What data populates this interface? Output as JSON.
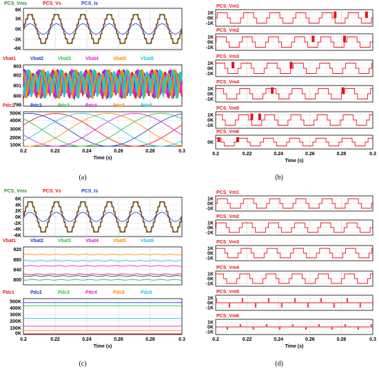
{
  "figure": {
    "captions": [
      "(a)",
      "(b)",
      "(c)",
      "(d)"
    ]
  },
  "chart_data": [
    {
      "id": "a1",
      "type": "line",
      "legend": [
        {
          "name": "PCS_Vms",
          "color": "#2e8b2e"
        },
        {
          "name": "PCS_Vs",
          "color": "#e8141c"
        },
        {
          "name": "PCS_Is",
          "color": "#1e3cd2"
        }
      ],
      "yticks": [
        "6K",
        "3K",
        "0K",
        "-3K",
        "-6K"
      ],
      "ylim": [
        -6000,
        6000
      ],
      "xlim": [
        0.2,
        0.3
      ],
      "series": [
        {
          "name": "PCS_Vms",
          "kind": "sine",
          "amp": 4200,
          "freq": 60,
          "phase": 0,
          "steps": true,
          "color": "#2e8b2e"
        },
        {
          "name": "PCS_Vs",
          "kind": "sine",
          "amp": 4200,
          "freq": 60,
          "phase": 0,
          "steps": false,
          "color": "#e8141c"
        },
        {
          "name": "PCS_Is",
          "kind": "sine",
          "amp": 1500,
          "freq": 60,
          "phase": 0,
          "steps": false,
          "color": "#1e3cd2"
        }
      ]
    },
    {
      "id": "a2",
      "type": "line",
      "legend": [
        {
          "name": "Vbat1",
          "color": "#e8141c"
        },
        {
          "name": "Vbat2",
          "color": "#1e3cd2"
        },
        {
          "name": "Vbat3",
          "color": "#22c83c"
        },
        {
          "name": "Vbat4",
          "color": "#e61ed7"
        },
        {
          "name": "Vbat5",
          "color": "#ff8c00"
        },
        {
          "name": "Vbat6",
          "color": "#1ec8dc"
        }
      ],
      "yticks": [
        "803",
        "802",
        "801",
        "800",
        "799"
      ],
      "ylim": [
        799,
        803
      ],
      "xlim": [
        0.2,
        0.3
      ],
      "series": [
        {
          "name": "Vbat1",
          "kind": "ripple",
          "base": 800,
          "amp": 2.2,
          "freq": 120,
          "phase": 0,
          "color": "#e8141c"
        },
        {
          "name": "Vbat2",
          "kind": "ripple",
          "base": 800,
          "amp": 2.2,
          "freq": 120,
          "phase": 1.05,
          "color": "#1e3cd2"
        },
        {
          "name": "Vbat3",
          "kind": "ripple",
          "base": 800,
          "amp": 2.2,
          "freq": 120,
          "phase": 2.1,
          "color": "#22c83c"
        },
        {
          "name": "Vbat4",
          "kind": "ripple",
          "base": 800,
          "amp": 2.2,
          "freq": 120,
          "phase": 0.5,
          "color": "#e61ed7"
        },
        {
          "name": "Vbat5",
          "kind": "ripple",
          "base": 800,
          "amp": 2.2,
          "freq": 120,
          "phase": 1.6,
          "color": "#ff8c00"
        },
        {
          "name": "Vbat6",
          "kind": "ripple",
          "base": 800,
          "amp": 2.2,
          "freq": 120,
          "phase": 2.6,
          "color": "#1ec8dc"
        }
      ]
    },
    {
      "id": "a3",
      "type": "line",
      "legend": [
        {
          "name": "Pdc1",
          "color": "#e8141c"
        },
        {
          "name": "Pdc2",
          "color": "#1e3cd2"
        },
        {
          "name": "Pdc3",
          "color": "#22c83c"
        },
        {
          "name": "Pdc4",
          "color": "#e61ed7"
        },
        {
          "name": "Pdc5",
          "color": "#ff8c00"
        },
        {
          "name": "Pdc6",
          "color": "#1ec8dc"
        }
      ],
      "yticks": [
        "500K",
        "400K",
        "300K",
        "200K",
        "100K"
      ],
      "ylim": [
        100000,
        500000
      ],
      "xticks": [
        "0.2",
        "0.22",
        "0.24",
        "0.26",
        "0.28",
        "0.3"
      ],
      "xlabel": "Time (s)",
      "xlim": [
        0.2,
        0.3
      ],
      "series": [
        {
          "name": "Pdc1",
          "kind": "sine",
          "offset": 290000,
          "amp": 190000,
          "freq": 10,
          "phase": 0.3,
          "color": "#e8141c"
        },
        {
          "name": "Pdc2",
          "kind": "sine",
          "offset": 290000,
          "amp": 190000,
          "freq": 10,
          "phase": 1.35,
          "color": "#1e3cd2"
        },
        {
          "name": "Pdc3",
          "kind": "sine",
          "offset": 290000,
          "amp": 190000,
          "freq": 10,
          "phase": 2.4,
          "color": "#22c83c"
        },
        {
          "name": "Pdc4",
          "kind": "sine",
          "offset": 290000,
          "amp": 190000,
          "freq": 10,
          "phase": 3.45,
          "color": "#e61ed7"
        },
        {
          "name": "Pdc5",
          "kind": "sine",
          "offset": 290000,
          "amp": 190000,
          "freq": 10,
          "phase": 4.5,
          "color": "#ff8c00"
        },
        {
          "name": "Pdc6",
          "kind": "sine",
          "offset": 290000,
          "amp": 190000,
          "freq": 10,
          "phase": 5.55,
          "color": "#1ec8dc"
        }
      ]
    },
    {
      "id": "b1",
      "type": "line",
      "title": "PCS_Vm1",
      "yticks": [
        "1K",
        "0K",
        "-1K"
      ],
      "ylim": [
        -1600,
        1600
      ],
      "xlim": [
        0.2,
        0.3
      ],
      "series": [
        {
          "name": "PCS_Vm1",
          "kind": "square",
          "amp": 1000,
          "freq": 60,
          "phase": 0.0,
          "spikes": [
            0.276,
            0.296
          ],
          "color": "#e8141c"
        }
      ]
    },
    {
      "id": "b2",
      "type": "line",
      "title": "PCS_Vm2",
      "yticks": [
        "1K",
        "0K",
        "-1K"
      ],
      "ylim": [
        -1600,
        1600
      ],
      "xlim": [
        0.2,
        0.3
      ],
      "series": [
        {
          "name": "PCS_Vm2",
          "kind": "square",
          "amp": 1000,
          "freq": 60,
          "phase": 0.3,
          "spikes": [
            0.262,
            0.282
          ],
          "color": "#e8141c"
        }
      ]
    },
    {
      "id": "b3",
      "type": "line",
      "title": "PCS_Vm3",
      "yticks": [
        "1K",
        "0K",
        "-1K"
      ],
      "ylim": [
        -1600,
        1600
      ],
      "xlim": [
        0.2,
        0.3
      ],
      "series": [
        {
          "name": "PCS_Vm3",
          "kind": "square",
          "amp": 1000,
          "freq": 60,
          "phase": 0.6,
          "spikes": [
            0.211,
            0.248
          ],
          "color": "#e8141c"
        }
      ]
    },
    {
      "id": "b4",
      "type": "line",
      "title": "PCS_Vm4",
      "yticks": [
        "1K",
        "0K",
        "-1K"
      ],
      "ylim": [
        -1600,
        1600
      ],
      "xlim": [
        0.2,
        0.3
      ],
      "series": [
        {
          "name": "PCS_Vm4",
          "kind": "square",
          "amp": 1000,
          "freq": 60,
          "phase": 0.9,
          "spikes": [
            0.236,
            0.281
          ],
          "color": "#e8141c"
        }
      ]
    },
    {
      "id": "b5",
      "type": "line",
      "title": "PCS_Vm5",
      "yticks": [
        "1K",
        "0K",
        "-1K"
      ],
      "ylim": [
        -1600,
        1600
      ],
      "xlim": [
        0.2,
        0.3
      ],
      "series": [
        {
          "name": "PCS_Vm5",
          "kind": "square",
          "amp": 1000,
          "freq": 60,
          "phase": 1.2,
          "spikes": [
            0.223,
            0.228
          ],
          "color": "#e8141c"
        }
      ]
    },
    {
      "id": "b6",
      "type": "line",
      "title": "PCS_Vm6",
      "yticks": [
        "0K"
      ],
      "ylim": [
        -1600,
        1600
      ],
      "xlim": [
        0.2,
        0.3
      ],
      "xticks": [
        "0.2",
        "0.22",
        "0.24",
        "0.26",
        "0.28",
        "0.3"
      ],
      "xlabel": "Time (s)",
      "series": [
        {
          "name": "PCS_Vm6",
          "kind": "square",
          "amp": 900,
          "freq": 60,
          "phase": 1.5,
          "spikes": [
            0.202,
            0.214
          ],
          "color": "#e8141c"
        }
      ]
    },
    {
      "id": "c1",
      "type": "line",
      "legend": [
        {
          "name": "PCS_Vms",
          "color": "#2e8b2e"
        },
        {
          "name": "PCS_Vs",
          "color": "#e8141c"
        },
        {
          "name": "PCS_Is",
          "color": "#1e3cd2"
        }
      ],
      "yticks": [
        "6K",
        "4K",
        "2K",
        "0K",
        "-2K",
        "-4K",
        "-6K"
      ],
      "ylim": [
        -6500,
        6500
      ],
      "xlim": [
        0.2,
        0.3
      ],
      "series": [
        {
          "name": "PCS_Vms",
          "kind": "sine",
          "amp": 5000,
          "freq": 60,
          "phase": 0,
          "steps": true,
          "color": "#2e8b2e"
        },
        {
          "name": "PCS_Vs",
          "kind": "sine",
          "amp": 5000,
          "freq": 60,
          "phase": 0,
          "steps": false,
          "color": "#e8141c"
        },
        {
          "name": "PCS_Is",
          "kind": "sine",
          "amp": 1500,
          "freq": 60,
          "phase": 0,
          "steps": false,
          "color": "#1e3cd2"
        }
      ]
    },
    {
      "id": "c2",
      "type": "line",
      "legend": [
        {
          "name": "Vbat1",
          "color": "#e8141c"
        },
        {
          "name": "Vbat2",
          "color": "#1e3cd2"
        },
        {
          "name": "Vbat3",
          "color": "#22c83c"
        },
        {
          "name": "Vbat4",
          "color": "#e61ed7"
        },
        {
          "name": "Vbat5",
          "color": "#ff8c00"
        },
        {
          "name": "Vbat6",
          "color": "#1ec8dc"
        }
      ],
      "yticks": [
        "920",
        "880",
        "840",
        "800"
      ],
      "ylim": [
        780,
        930
      ],
      "xlim": [
        0.2,
        0.3
      ],
      "series": [
        {
          "name": "Vbat1",
          "kind": "flat",
          "base": 822,
          "ripple": 1.5,
          "color": "#e8141c"
        },
        {
          "name": "Vbat2",
          "kind": "flat",
          "base": 815,
          "ripple": 1.5,
          "color": "#1e3cd2"
        },
        {
          "name": "Vbat3",
          "kind": "flat",
          "base": 800,
          "ripple": 1.5,
          "color": "#22c83c"
        },
        {
          "name": "Vbat4",
          "kind": "flat",
          "base": 855,
          "ripple": 1.5,
          "color": "#e61ed7"
        },
        {
          "name": "Vbat5",
          "kind": "flat",
          "base": 900,
          "ripple": 1.5,
          "color": "#ff8c00"
        },
        {
          "name": "Vbat6",
          "kind": "flat",
          "base": 875,
          "ripple": 1.5,
          "color": "#1ec8dc"
        }
      ]
    },
    {
      "id": "c3",
      "type": "line",
      "legend": [
        {
          "name": "Pdc1",
          "color": "#e8141c"
        },
        {
          "name": "Pdc2",
          "color": "#1e3cd2"
        },
        {
          "name": "Pdc3",
          "color": "#22c83c"
        },
        {
          "name": "Pdc4",
          "color": "#e61ed7"
        },
        {
          "name": "Pdc5",
          "color": "#ff8c00"
        },
        {
          "name": "Pdc6",
          "color": "#1ec8dc"
        }
      ],
      "yticks": [
        "500K",
        "400K",
        "300K",
        "200K",
        "100K",
        "0K"
      ],
      "ylim": [
        0,
        540000
      ],
      "xticks": [
        "0.2",
        "0.22",
        "0.24",
        "0.26",
        "0.28",
        "0.3"
      ],
      "xlabel": "Time (s)",
      "xlim": [
        0.2,
        0.3
      ],
      "series": [
        {
          "name": "Pdc1",
          "kind": "flat",
          "base": 10000,
          "ripple": 0,
          "color": "#e8141c"
        },
        {
          "name": "Pdc2",
          "kind": "flat",
          "base": 480000,
          "ripple": 0,
          "color": "#1e3cd2"
        },
        {
          "name": "Pdc3",
          "kind": "flat",
          "base": 430000,
          "ripple": 0,
          "color": "#22c83c"
        },
        {
          "name": "Pdc4",
          "kind": "flat",
          "base": 125000,
          "ripple": 0,
          "color": "#e61ed7"
        },
        {
          "name": "Pdc5",
          "kind": "flat",
          "base": 60000,
          "ripple": 0,
          "color": "#ff8c00"
        },
        {
          "name": "Pdc6",
          "kind": "flat",
          "base": 245000,
          "ripple": 0,
          "color": "#1ec8dc"
        }
      ]
    },
    {
      "id": "d1",
      "type": "line",
      "title": "PCS_Vm1",
      "yticks": [
        "1K",
        "0K",
        "-1K"
      ],
      "ylim": [
        -1600,
        1600
      ],
      "xlim": [
        0.2,
        0.3
      ],
      "series": [
        {
          "name": "PCS_Vm1",
          "kind": "square",
          "amp": 1000,
          "freq": 60,
          "phase": 0.0,
          "spikes": [],
          "color": "#e8141c"
        }
      ]
    },
    {
      "id": "d2",
      "type": "line",
      "title": "PCS_Vm2",
      "yticks": [
        "1K",
        "0K",
        "-1K"
      ],
      "ylim": [
        -1600,
        1600
      ],
      "xlim": [
        0.2,
        0.3
      ],
      "series": [
        {
          "name": "PCS_Vm2",
          "kind": "square",
          "amp": 1000,
          "freq": 60,
          "phase": 0.3,
          "spikes": [],
          "color": "#e8141c"
        }
      ]
    },
    {
      "id": "d3",
      "type": "line",
      "title": "PCS_Vm3",
      "yticks": [
        "1K",
        "0K",
        "-1K"
      ],
      "ylim": [
        -1600,
        1600
      ],
      "xlim": [
        0.2,
        0.3
      ],
      "series": [
        {
          "name": "PCS_Vm3",
          "kind": "square",
          "amp": 1000,
          "freq": 60,
          "phase": 0.6,
          "spikes": [],
          "color": "#e8141c"
        }
      ]
    },
    {
      "id": "d4",
      "type": "line",
      "title": "PCS_Vm4",
      "yticks": [
        "1K",
        "0K",
        "-1K"
      ],
      "ylim": [
        -1600,
        1600
      ],
      "xlim": [
        0.2,
        0.3
      ],
      "series": [
        {
          "name": "PCS_Vm4",
          "kind": "square",
          "amp": 1000,
          "freq": 60,
          "phase": 0.9,
          "spikes": [],
          "color": "#e8141c"
        }
      ]
    },
    {
      "id": "d5",
      "type": "line",
      "title": "PCS_Vm5",
      "yticks": [
        "1K",
        "0K",
        "-1K"
      ],
      "ylim": [
        -1600,
        1600
      ],
      "xlim": [
        0.2,
        0.3
      ],
      "series": [
        {
          "name": "PCS_Vm5",
          "kind": "pulses",
          "amp": 900,
          "freq": 60,
          "phase": 0.0,
          "color": "#e8141c"
        }
      ]
    },
    {
      "id": "d6",
      "type": "line",
      "title": "PCS_Vm6",
      "yticks": [
        "1K",
        "0K",
        "-1K"
      ],
      "ylim": [
        -1600,
        1600
      ],
      "xlim": [
        0.2,
        0.3
      ],
      "xticks": [
        "0.2",
        "0.22",
        "0.24",
        "0.26",
        "0.28",
        "0.3"
      ],
      "xlabel": "Time (s)",
      "series": [
        {
          "name": "PCS_Vm6",
          "kind": "pulses",
          "amp": 500,
          "freq": 60,
          "phase": 0.5,
          "color": "#e8141c"
        }
      ]
    }
  ]
}
